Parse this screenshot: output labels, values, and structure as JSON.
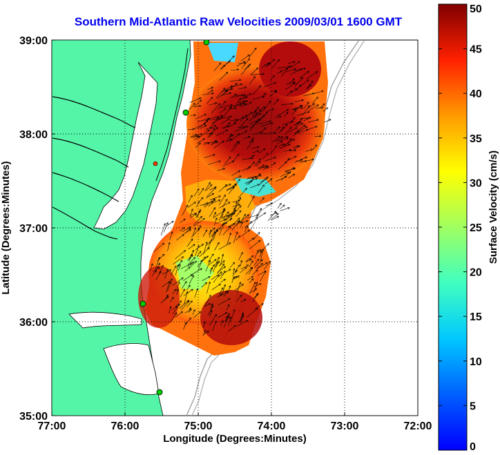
{
  "map": {
    "title": "Southern Mid-Atlantic Raw Velocities 2009/03/01 1600 GMT",
    "xlabel": "Longitude (Degrees:Minutes)",
    "ylabel": "Latitude (Degrees:Minutes)",
    "lon_range": [
      -77,
      -72
    ],
    "lat_range": [
      35,
      39
    ],
    "x_ticks": [
      {
        "value": -77,
        "label": "77:00"
      },
      {
        "value": -76,
        "label": "76:00"
      },
      {
        "value": -75,
        "label": "75:00"
      },
      {
        "value": -74,
        "label": "74:00"
      },
      {
        "value": -73,
        "label": "73:00"
      },
      {
        "value": -72,
        "label": "72:00"
      }
    ],
    "y_ticks": [
      {
        "value": 35,
        "label": "35:00"
      },
      {
        "value": 36,
        "label": "36:00"
      },
      {
        "value": 37,
        "label": "37:00"
      },
      {
        "value": 38,
        "label": "38:00"
      },
      {
        "value": 39,
        "label": "39:00"
      }
    ],
    "grid": true,
    "land_color": "#55f5a8",
    "ocean_color": "#ffffff",
    "station_color": "#00cc00",
    "station_alt_color": "#ff3300"
  },
  "colorbar": {
    "label": "Surface Velocity (cm/s)",
    "min": 0,
    "max": 50,
    "ticks": [
      "0",
      "5",
      "10",
      "15",
      "20",
      "25",
      "30",
      "35",
      "40",
      "45",
      "50"
    ]
  }
}
